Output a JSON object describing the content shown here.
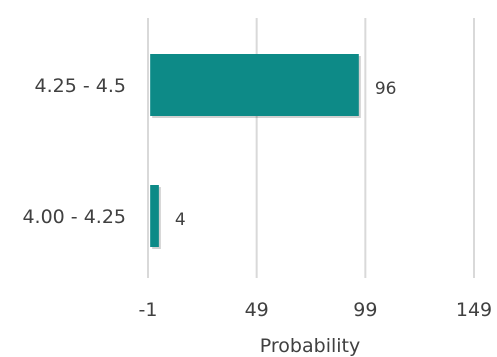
{
  "chart_data": {
    "type": "bar",
    "orientation": "horizontal",
    "categories": [
      "4.25 - 4.5",
      "4.00 - 4.25"
    ],
    "values": [
      96,
      4
    ],
    "data_labels": [
      "96",
      "4"
    ],
    "xlabel": "Probability",
    "ylabel": "",
    "xlim": [
      -1,
      149
    ],
    "x_ticks": [
      -1,
      49,
      99,
      149
    ],
    "x_tick_labels": [
      "-1",
      "49",
      "99",
      "149"
    ],
    "grid": true,
    "legend": "none",
    "bar_color": "#0d8a87",
    "gridline_color": "#d9d9d9"
  }
}
